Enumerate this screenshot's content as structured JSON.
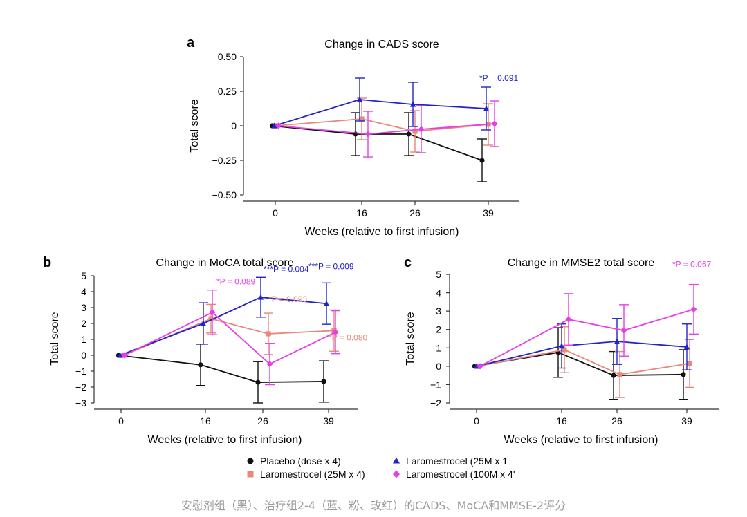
{
  "chart_data": [
    {
      "panel": "a",
      "type": "line",
      "title": "Change in CADS score",
      "xlabel": "Weeks (relative to first infusion)",
      "ylabel": "Total score",
      "categories": [
        "0",
        "16",
        "26",
        "39"
      ],
      "ylim": [
        -0.5,
        0.5
      ],
      "yticks": [
        -0.5,
        -0.25,
        0,
        0.25,
        0.5
      ],
      "ytick_labels": [
        "−0.50",
        "−0.25",
        "0",
        "0.25",
        "0.50"
      ],
      "series": [
        {
          "name": "Placebo (dose x 4)",
          "key": "placebo",
          "values": [
            0,
            -0.06,
            -0.06,
            -0.25
          ],
          "err": [
            0,
            0.155,
            0.155,
            0.155
          ]
        },
        {
          "name": "Laromestrocel (25M x 4)",
          "key": "l25x4",
          "values": [
            0,
            0.05,
            -0.04,
            0.01
          ],
          "err": [
            0,
            0.15,
            0.15,
            0.15
          ]
        },
        {
          "name": "Laromestrocel (25M x 1)",
          "key": "l25x1",
          "values": [
            0,
            0.19,
            0.155,
            0.125
          ],
          "err": [
            0,
            0.155,
            0.16,
            0.155
          ]
        },
        {
          "name": "Laromestrocel (100M x 4)",
          "key": "l100x4",
          "values": [
            0,
            -0.06,
            -0.025,
            0.015
          ],
          "err": [
            0,
            0.165,
            0.17,
            0.165
          ]
        }
      ],
      "annotations": [
        {
          "text": "*P = 0.091",
          "series": "l25x1",
          "at": "39"
        }
      ]
    },
    {
      "panel": "b",
      "type": "line",
      "title": "Change in MoCA total score",
      "xlabel": "Weeks (relative to first infusion)",
      "ylabel": "Total score",
      "categories": [
        "0",
        "16",
        "26",
        "39"
      ],
      "ylim": [
        -3,
        5
      ],
      "yticks": [
        -3,
        -2,
        -1,
        0,
        1,
        2,
        3,
        4,
        5
      ],
      "ytick_labels": [
        "−3",
        "−2",
        "−1",
        "0",
        "1",
        "2",
        "3",
        "4",
        "5"
      ],
      "series": [
        {
          "name": "Placebo (dose x 4)",
          "key": "placebo",
          "values": [
            0,
            -0.6,
            -1.7,
            -1.65
          ],
          "err": [
            0,
            1.3,
            1.3,
            1.3
          ]
        },
        {
          "name": "Laromestrocel (25M x 4)",
          "key": "l25x4",
          "values": [
            0,
            2.3,
            1.35,
            1.55
          ],
          "err": [
            0,
            0.9,
            1.3,
            1.3
          ]
        },
        {
          "name": "Laromestrocel (25M x 1)",
          "key": "l25x1",
          "values": [
            0,
            2.0,
            3.65,
            3.25
          ],
          "err": [
            0,
            1.3,
            1.25,
            1.3
          ]
        },
        {
          "name": "Laromestrocel (100M x 4)",
          "key": "l100x4",
          "values": [
            0,
            2.7,
            -0.55,
            1.45
          ],
          "err": [
            0,
            1.4,
            1.3,
            1.35
          ]
        }
      ],
      "annotations": [
        {
          "text": "*P = 0.089",
          "series": "l100x4",
          "at": "16"
        },
        {
          "text": "***P = 0.004",
          "series": "l25x1",
          "at": "26"
        },
        {
          "text": "*P = 0.093",
          "series": "l25x4",
          "at": "26"
        },
        {
          "text": "***P = 0.009",
          "series": "l25x1",
          "at": "39"
        },
        {
          "text": "*P = 0.080",
          "series": "l25x4",
          "at": "39"
        }
      ]
    },
    {
      "panel": "c",
      "type": "line",
      "title": "Change in MMSE2 total score",
      "xlabel": "Weeks (relative to first infusion)",
      "ylabel": "Total score",
      "categories": [
        "0",
        "16",
        "26",
        "39"
      ],
      "ylim": [
        -2,
        5
      ],
      "yticks": [
        -2,
        -1,
        0,
        1,
        2,
        3,
        4,
        5
      ],
      "ytick_labels": [
        "−2",
        "−1",
        "0",
        "1",
        "2",
        "3",
        "4",
        "5"
      ],
      "series": [
        {
          "name": "Placebo (dose x 4)",
          "key": "placebo",
          "values": [
            0,
            0.75,
            -0.5,
            -0.45
          ],
          "err": [
            0,
            1.35,
            1.3,
            1.35
          ]
        },
        {
          "name": "Laromestrocel (25M x 4)",
          "key": "l25x4",
          "values": [
            0,
            0.9,
            -0.45,
            0.15
          ],
          "err": [
            0,
            1.25,
            1.25,
            1.3
          ]
        },
        {
          "name": "Laromestrocel (25M x 1)",
          "key": "l25x1",
          "values": [
            0,
            1.1,
            1.35,
            1.05
          ],
          "err": [
            0,
            1.2,
            1.25,
            1.25
          ]
        },
        {
          "name": "Laromestrocel (100M x 4)",
          "key": "l100x4",
          "values": [
            0,
            2.55,
            1.95,
            3.1
          ],
          "err": [
            0,
            1.4,
            1.4,
            1.35
          ]
        }
      ],
      "annotations": [
        {
          "text": "*P = 0.067",
          "series": "l100x4",
          "at": "39"
        }
      ]
    }
  ],
  "panel_labels": {
    "a": "a",
    "b": "b",
    "c": "c"
  },
  "legend": [
    {
      "key": "placebo",
      "label": "Placebo (dose x 4)",
      "color": "#111111",
      "marker": "circle"
    },
    {
      "key": "l25x4",
      "label": "Laromestrocel (25M x 4)",
      "color": "#e8877a",
      "marker": "square"
    },
    {
      "key": "l25x1",
      "label": "Laromestrocel (25M x 1",
      "color": "#2222cc",
      "marker": "triangle"
    },
    {
      "key": "l100x4",
      "label": "Laromestrocel (100M x 4'",
      "color": "#e83de8",
      "marker": "diamond"
    }
  ],
  "colors": {
    "placebo": "#111111",
    "l25x4": "#e8877a",
    "l25x1": "#2222cc",
    "l100x4": "#e83de8"
  },
  "caption": "安慰剂组（黑）、治疗组2-4（蓝、粉、玫红）的CADS、MoCA和MMSE-2评分"
}
